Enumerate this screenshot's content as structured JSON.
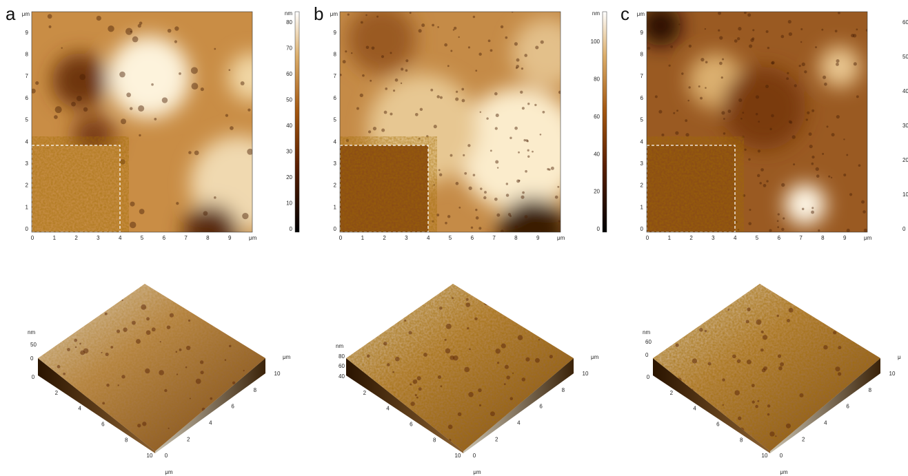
{
  "panels": [
    {
      "label": "a",
      "image": {
        "x_ticks": [
          "0",
          "1",
          "2",
          "3",
          "4",
          "5",
          "6",
          "7",
          "8",
          "9"
        ],
        "x_unit": "μm",
        "y_ticks": [
          "0",
          "1",
          "2",
          "3",
          "4",
          "5",
          "6",
          "7",
          "8",
          "9"
        ],
        "y_unit": "μm"
      },
      "colorbar": {
        "unit": "nm",
        "ticks": [
          "80",
          "70",
          "60",
          "50",
          "40",
          "30",
          "20",
          "10",
          "0"
        ]
      },
      "surface": {
        "z_unit": "nm",
        "z_ticks": [
          "50",
          "0"
        ],
        "x_ticks": [
          "0",
          "2",
          "4",
          "6",
          "8",
          "10"
        ],
        "y_ticks": [
          "0",
          "2",
          "4",
          "6",
          "8",
          "10"
        ],
        "x_unit": "μm",
        "y_unit": "μm"
      }
    },
    {
      "label": "b",
      "image": {
        "x_ticks": [
          "0",
          "1",
          "2",
          "3",
          "4",
          "5",
          "6",
          "7",
          "8",
          "9"
        ],
        "x_unit": "μm",
        "y_ticks": [
          "0",
          "1",
          "2",
          "3",
          "4",
          "5",
          "6",
          "7",
          "8",
          "9"
        ],
        "y_unit": "μm"
      },
      "colorbar": {
        "unit": "nm",
        "ticks": [
          "100",
          "80",
          "60",
          "40",
          "20",
          "0"
        ]
      },
      "surface": {
        "z_unit": "nm",
        "z_ticks": [
          "80",
          "60",
          "40"
        ],
        "x_ticks": [
          "2",
          "4",
          "6",
          "8",
          "10"
        ],
        "y_ticks": [
          "0",
          "2",
          "4",
          "6",
          "8",
          "10"
        ],
        "x_unit": "μm",
        "y_unit": "μm"
      }
    },
    {
      "label": "c",
      "image": {
        "x_ticks": [
          "0",
          "1",
          "2",
          "3",
          "4",
          "5",
          "6",
          "7",
          "8",
          "9"
        ],
        "x_unit": "μm",
        "y_ticks": [
          "0",
          "1",
          "2",
          "3",
          "4",
          "5",
          "6",
          "7",
          "8",
          "9"
        ],
        "y_unit": "μm"
      },
      "colorbar": {
        "unit": "",
        "ticks": [
          "60",
          "50",
          "40",
          "30",
          "20",
          "10",
          "0"
        ]
      },
      "surface": {
        "z_unit": "nm",
        "z_ticks": [
          "60",
          "0"
        ],
        "x_ticks": [
          "0",
          "2",
          "4",
          "6",
          "8",
          "10"
        ],
        "y_ticks": [
          "0",
          "2",
          "4",
          "6",
          "8",
          "10"
        ],
        "x_unit": "μm",
        "y_unit": "μ"
      }
    }
  ]
}
